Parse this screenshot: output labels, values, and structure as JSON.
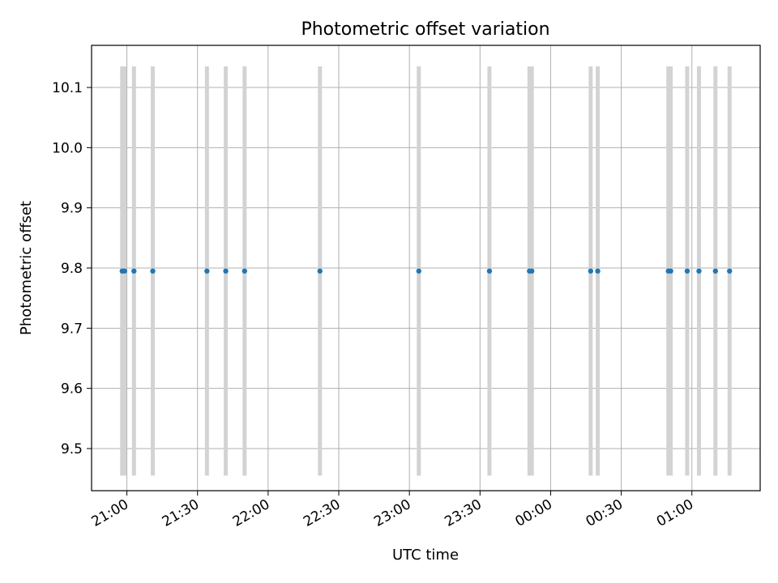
{
  "chart_data": {
    "type": "scatter",
    "title": "Photometric offset variation",
    "xlabel": "UTC time",
    "ylabel": "Photometric offset",
    "x_axis_type": "time",
    "x_ticks": [
      "21:00",
      "21:30",
      "22:00",
      "22:30",
      "23:00",
      "23:30",
      "00:00",
      "00:30",
      "01:00"
    ],
    "xlim": [
      "20:45",
      "01:29"
    ],
    "y_ticks": [
      "9.5",
      "9.6",
      "9.7",
      "9.8",
      "9.9",
      "10.0",
      "10.1"
    ],
    "ylim": [
      9.43,
      10.17
    ],
    "grid": true,
    "errorbar_color": "#d3d3d3",
    "point_color": "#1f77b4",
    "errorbar_range": [
      9.455,
      10.135
    ],
    "series": [
      {
        "x": [
          "20:58",
          "20:59",
          "21:03",
          "21:11",
          "21:34",
          "21:42",
          "21:50",
          "22:22",
          "23:04",
          "23:34",
          "23:51",
          "23:52",
          "00:17",
          "00:20",
          "00:50",
          "00:51",
          "00:58",
          "01:03",
          "01:10",
          "01:16"
        ],
        "y": [
          9.795,
          9.795,
          9.795,
          9.795,
          9.795,
          9.795,
          9.795,
          9.795,
          9.795,
          9.795,
          9.795,
          9.795,
          9.795,
          9.795,
          9.795,
          9.795,
          9.795,
          9.795,
          9.795,
          9.795
        ]
      }
    ]
  }
}
